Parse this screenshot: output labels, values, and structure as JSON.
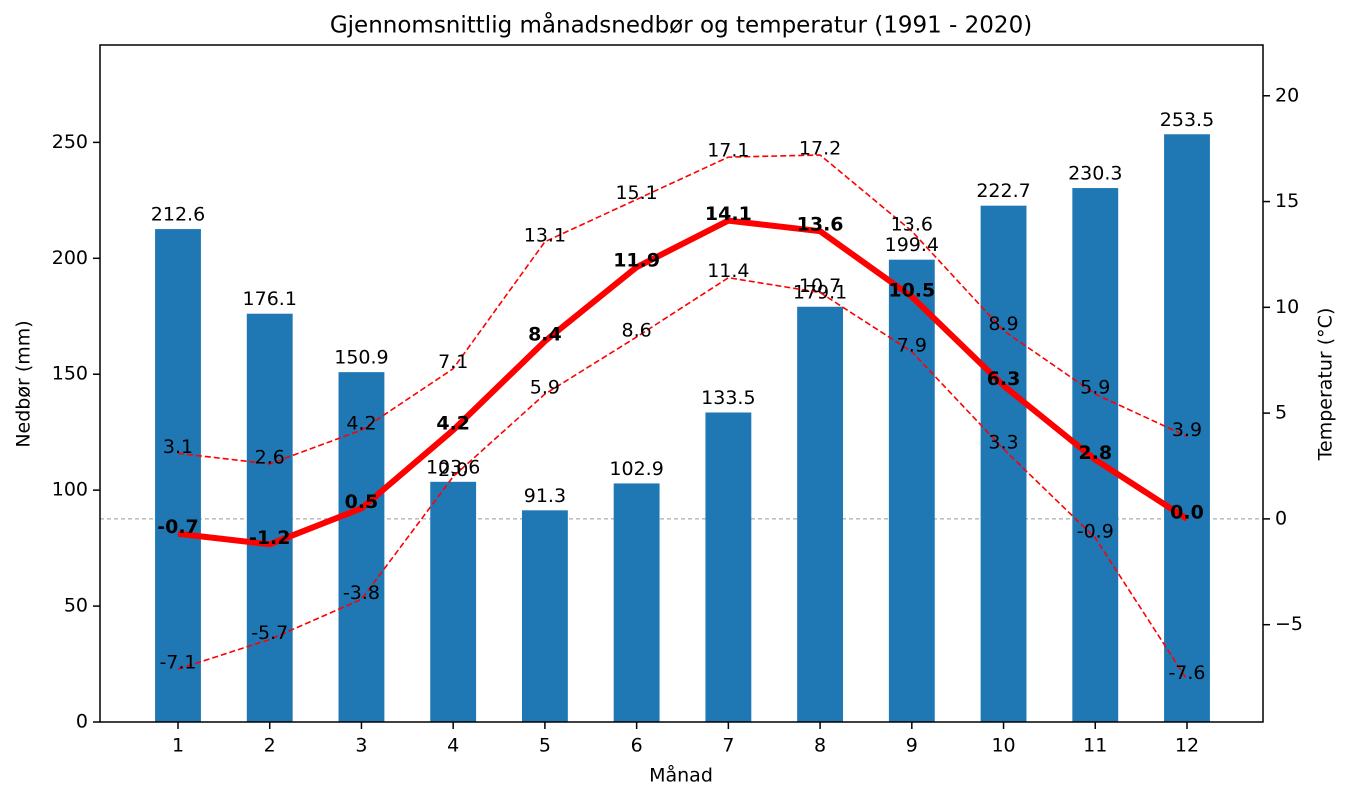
{
  "chart_data": {
    "type": "bar_line",
    "title": "Gjennomsnittlig månadsnedbør og temperatur (1991 - 2020)",
    "x_label": "Månad",
    "y_label": "Nedbør (mm)",
    "y2_label": "Temperatur (°C)",
    "categories": [
      "1",
      "2",
      "3",
      "4",
      "5",
      "6",
      "7",
      "8",
      "9",
      "10",
      "11",
      "12"
    ],
    "ylim": [
      0,
      292
    ],
    "yticks": [
      0,
      50,
      100,
      150,
      200,
      250
    ],
    "y2lim": [
      -9.6,
      22.4
    ],
    "y2ticks": [
      {
        "value": -5,
        "label": "−5"
      },
      0,
      5,
      10,
      15,
      20
    ],
    "y2_reference_line": 0,
    "series": [
      {
        "type": "bar",
        "color": "#1f77b4",
        "values": [
          212.6,
          176.1,
          150.9,
          103.6,
          91.3,
          102.9,
          133.5,
          179.1,
          199.4,
          222.7,
          230.3,
          253.5
        ]
      },
      {
        "type": "line",
        "axis": "y2",
        "color": "#ff0000",
        "style": "solid",
        "bold_labels": true,
        "values": [
          -0.7,
          -1.2,
          0.5,
          4.2,
          8.4,
          11.9,
          14.1,
          13.6,
          10.5,
          6.3,
          2.8,
          0.0
        ],
        "value_labels": [
          "-0.7",
          "-1.2",
          "0.5",
          "4.2",
          "8.4",
          "11.9",
          "14.1",
          "13.6",
          "10.5",
          "6.3",
          "2.8",
          "0.0"
        ]
      },
      {
        "type": "line",
        "axis": "y2",
        "color": "#ff0000",
        "style": "dashed",
        "values": [
          3.1,
          2.6,
          4.2,
          7.1,
          13.1,
          15.1,
          17.1,
          17.2,
          13.6,
          8.9,
          5.9,
          3.9
        ]
      },
      {
        "type": "line",
        "axis": "y2",
        "color": "#ff0000",
        "style": "dashed",
        "values": [
          -7.1,
          -5.7,
          -3.8,
          2.0,
          5.9,
          8.6,
          11.4,
          10.7,
          7.9,
          3.3,
          -0.9,
          -7.6
        ],
        "value_labels": [
          "-7.1",
          "-5.7",
          "-3.8",
          "2.0",
          "5.9",
          "8.6",
          "11.4",
          "10.7",
          "7.9",
          "3.3",
          "-0.9",
          "-7.6"
        ]
      }
    ]
  }
}
